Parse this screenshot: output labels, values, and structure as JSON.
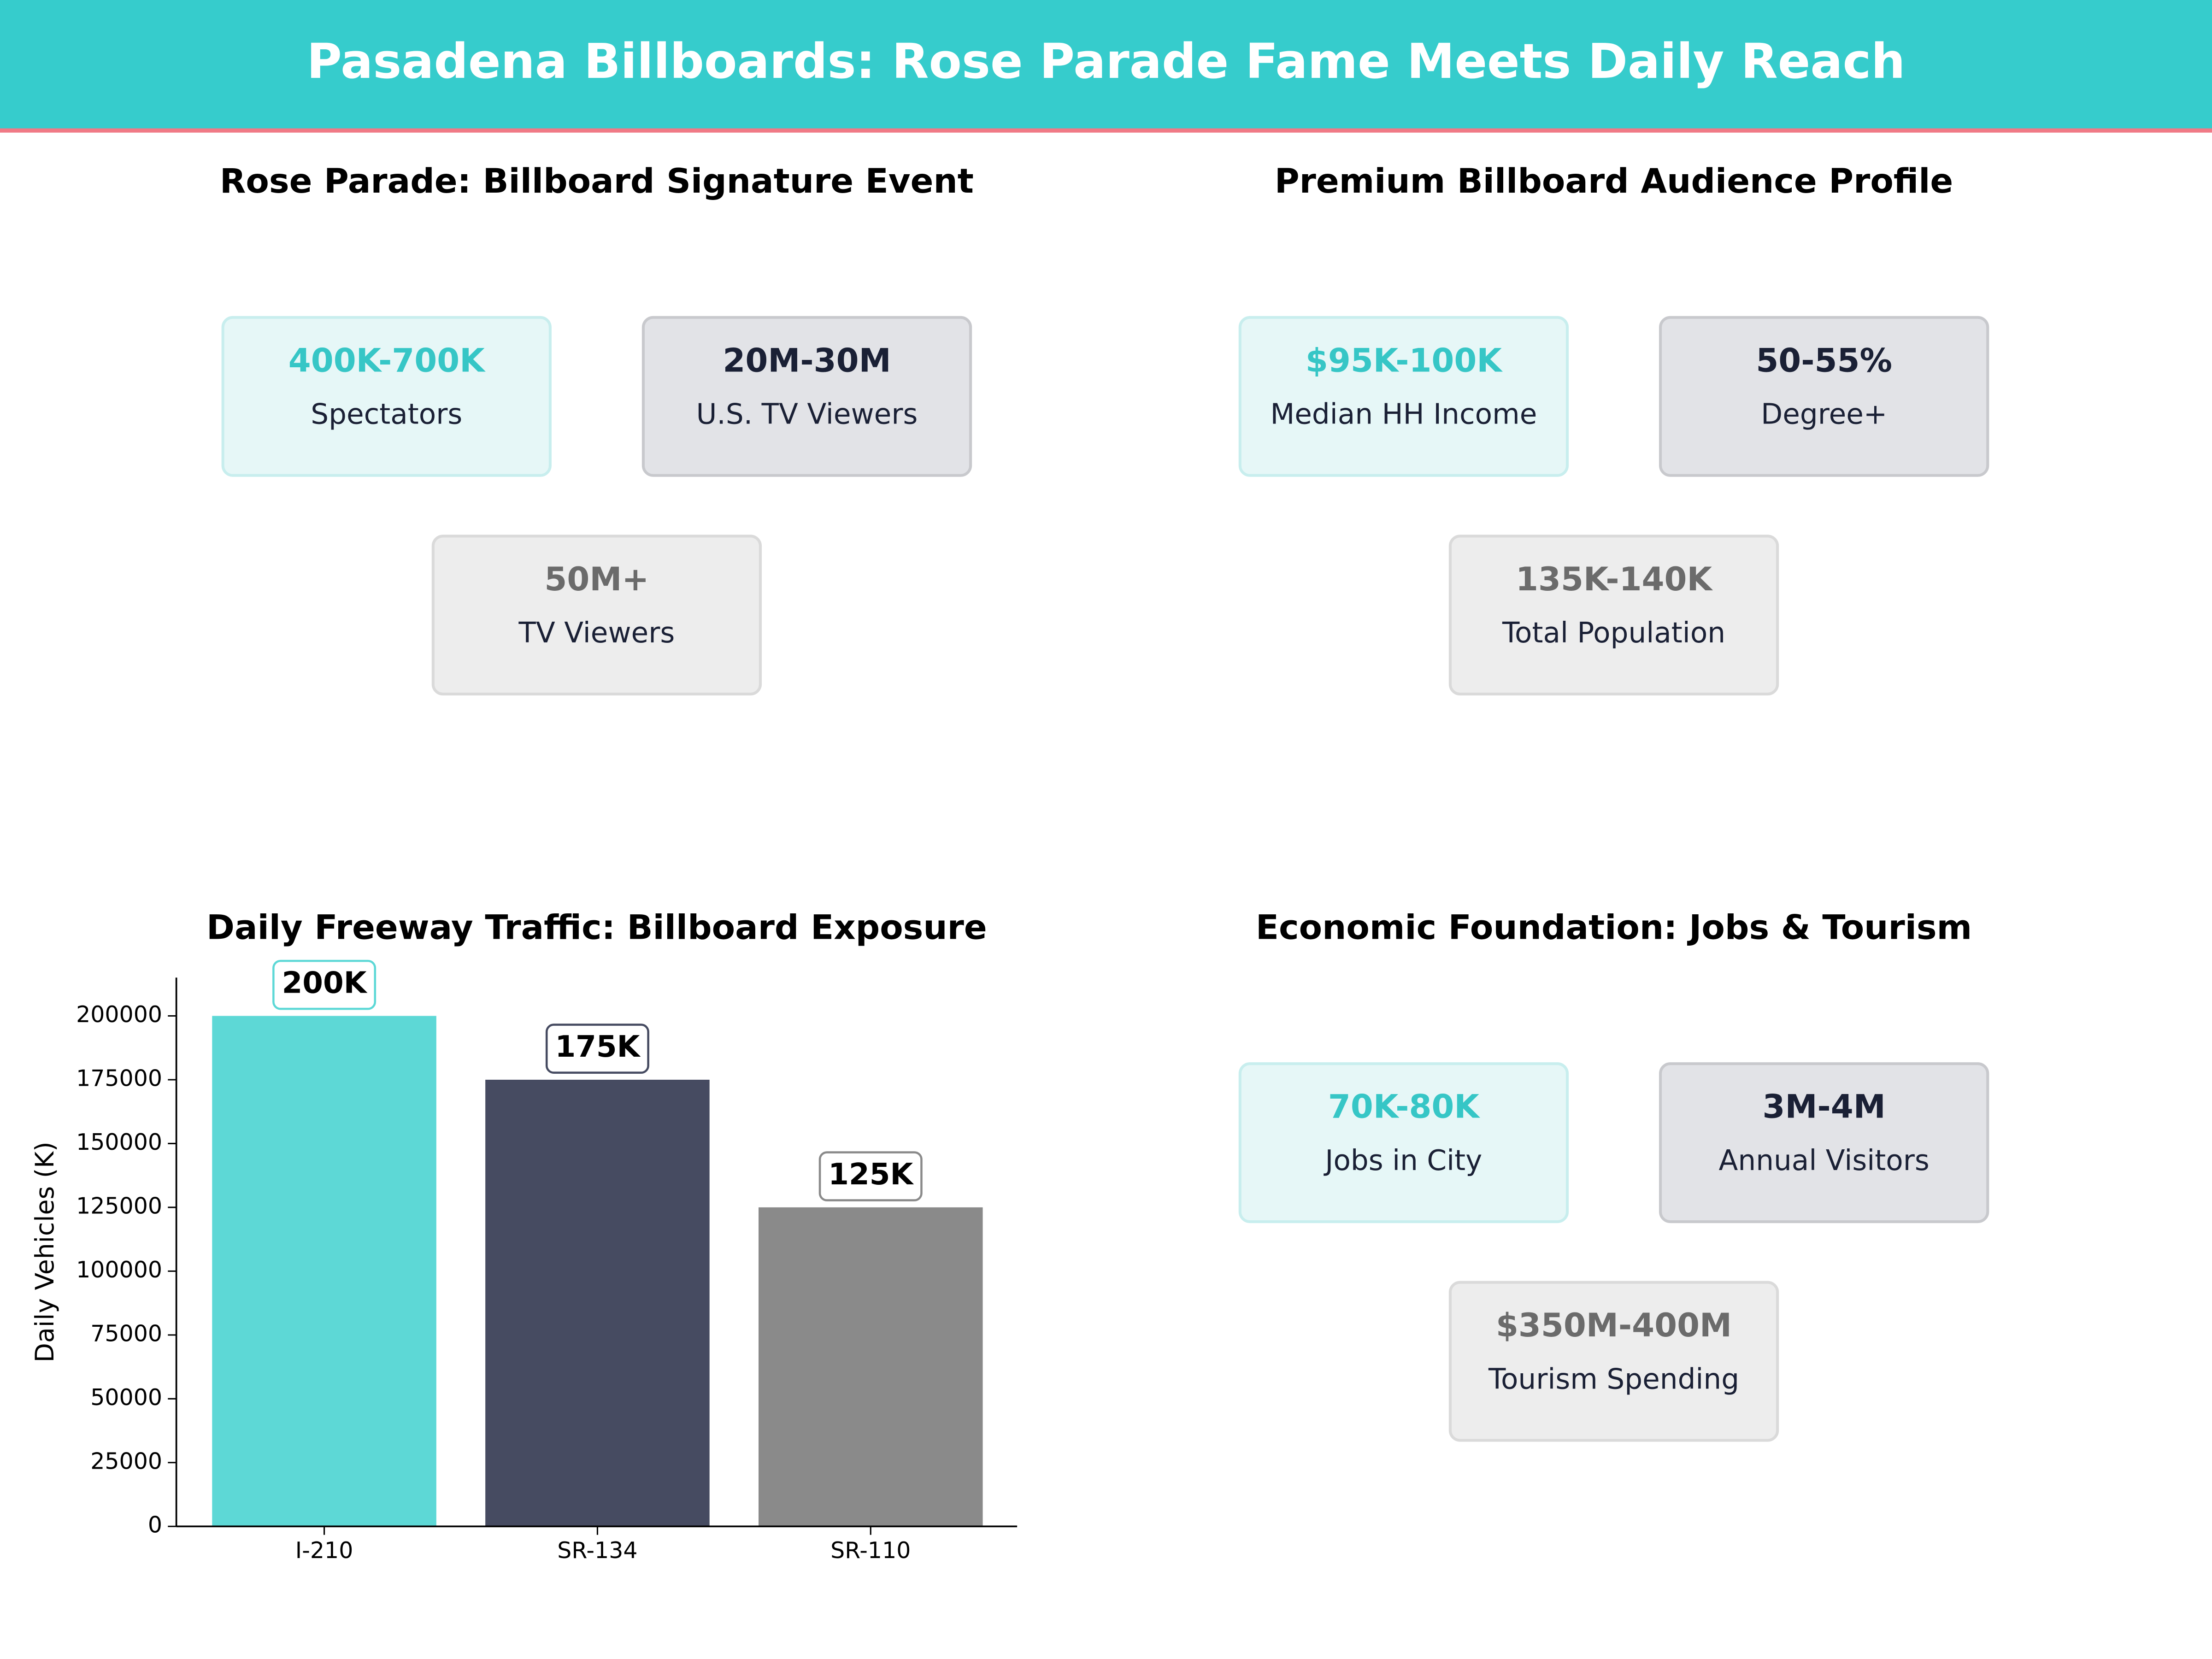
{
  "title": "Pasadena Billboards: Rose Parade Fame Meets Daily Reach",
  "kpi_panels": [
    {
      "title": "Rose Parade: Billboard Signature Event",
      "cards": [
        {
          "value": "400K-700K",
          "label": "Spectators"
        },
        {
          "value": "20M-30M",
          "label": "U.S. TV Viewers"
        },
        {
          "value": "50M+",
          "label": "TV Viewers"
        }
      ]
    },
    {
      "title": "Premium Billboard Audience Profile",
      "cards": [
        {
          "value": "$95K-100K",
          "label": "Median HH Income"
        },
        {
          "value": "50-55%",
          "label": "Degree+"
        },
        {
          "value": "135K-140K",
          "label": "Total Population"
        }
      ]
    },
    {
      "title": "Economic Foundation: Jobs & Tourism",
      "cards": [
        {
          "value": "70K-80K",
          "label": "Jobs in City"
        },
        {
          "value": "3M-4M",
          "label": "Annual Visitors"
        },
        {
          "value": "$350M-400M",
          "label": "Tourism Spending"
        }
      ]
    }
  ],
  "chart_data": {
    "type": "bar",
    "title": "Daily Freeway Traffic: Billboard Exposure",
    "y_label": "Daily Vehicles (K)",
    "categories": [
      "I-210",
      "SR-134",
      "SR-110"
    ],
    "values": [
      200000,
      175000,
      125000
    ],
    "value_labels": [
      "200K",
      "175K",
      "125K"
    ],
    "colors": [
      "#5dd8d6",
      "#464b61",
      "#8a8a8a"
    ],
    "ylim": [
      0,
      215000
    ],
    "yticks": [
      0,
      25000,
      50000,
      75000,
      100000,
      125000,
      150000,
      175000,
      200000
    ]
  }
}
